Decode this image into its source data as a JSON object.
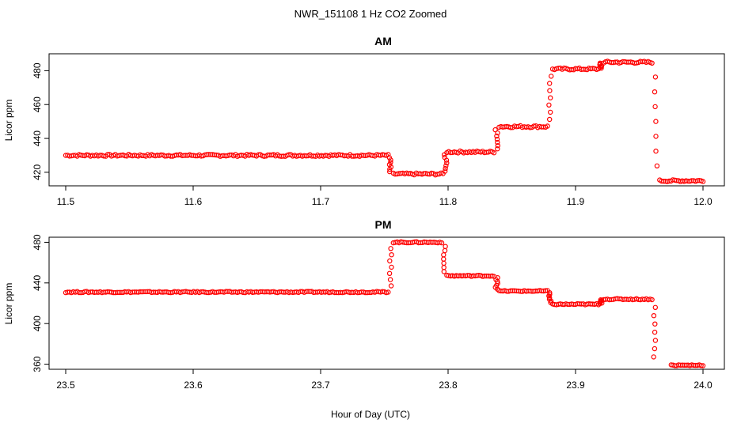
{
  "chart_data": [
    {
      "type": "scatter",
      "title": "AM",
      "ylabel": "Licor ppm",
      "xlim": [
        11.5,
        12.0
      ],
      "ylim": [
        412,
        490
      ],
      "x_ticks": [
        11.5,
        11.6,
        11.7,
        11.8,
        11.9,
        12.0
      ],
      "x_tick_labels": [
        "11.5",
        "11.6",
        "11.7",
        "11.8",
        "11.9",
        "12.0"
      ],
      "y_ticks": [
        420,
        440,
        460,
        480
      ],
      "y_tick_labels": [
        "420",
        "440",
        "460",
        "480"
      ],
      "marker_color": "#ff0000",
      "segments": [
        {
          "x_start": 11.5,
          "x_end": 11.753,
          "y": 430
        },
        {
          "x_start": 11.757,
          "x_end": 11.796,
          "y": 419
        },
        {
          "x_start": 11.799,
          "x_end": 11.836,
          "y": 432
        },
        {
          "x_start": 11.84,
          "x_end": 11.878,
          "y": 447
        },
        {
          "x_start": 11.882,
          "x_end": 11.918,
          "y": 481
        },
        {
          "x_start": 11.922,
          "x_end": 11.96,
          "y": 485
        },
        {
          "x_start": 11.966,
          "x_end": 12.0,
          "y": 415
        }
      ],
      "transitions": [
        {
          "x": 11.755,
          "y_from": 430,
          "y_to": 419
        },
        {
          "x": 11.798,
          "y_from": 419,
          "y_to": 432
        },
        {
          "x": 11.838,
          "y_from": 432,
          "y_to": 447
        },
        {
          "x": 11.88,
          "y_from": 447,
          "y_to": 481
        },
        {
          "x": 11.92,
          "y_from": 481,
          "y_to": 485
        },
        {
          "x": 11.963,
          "y_from": 485,
          "y_to": 415
        }
      ]
    },
    {
      "type": "scatter",
      "title": "PM",
      "ylabel": "Licor ppm",
      "xlim": [
        23.5,
        24.0
      ],
      "ylim": [
        355,
        485
      ],
      "x_ticks": [
        23.5,
        23.6,
        23.7,
        23.8,
        23.9,
        24.0
      ],
      "x_tick_labels": [
        "23.5",
        "23.6",
        "23.7",
        "23.8",
        "23.9",
        "24.0"
      ],
      "y_ticks": [
        360,
        400,
        440,
        480
      ],
      "y_tick_labels": [
        "360",
        "400",
        "440",
        "480"
      ],
      "marker_color": "#ff0000",
      "segments": [
        {
          "x_start": 23.5,
          "x_end": 23.753,
          "y": 431
        },
        {
          "x_start": 23.757,
          "x_end": 23.795,
          "y": 480
        },
        {
          "x_start": 23.799,
          "x_end": 23.836,
          "y": 447
        },
        {
          "x_start": 23.84,
          "x_end": 23.878,
          "y": 432
        },
        {
          "x_start": 23.882,
          "x_end": 23.918,
          "y": 419
        },
        {
          "x_start": 23.922,
          "x_end": 23.96,
          "y": 424
        },
        {
          "x_start": 23.975,
          "x_end": 24.0,
          "y": 359
        }
      ],
      "transitions": [
        {
          "x": 23.755,
          "y_from": 431,
          "y_to": 480
        },
        {
          "x": 23.797,
          "y_from": 480,
          "y_to": 447
        },
        {
          "x": 23.838,
          "y_from": 447,
          "y_to": 432
        },
        {
          "x": 23.88,
          "y_from": 432,
          "y_to": 419
        },
        {
          "x": 23.92,
          "y_from": 419,
          "y_to": 424
        },
        {
          "x": 23.962,
          "y_from": 424,
          "y_to": 359
        }
      ]
    }
  ],
  "page": {
    "main_title": "NWR_151108  1 Hz CO2 Zoomed",
    "xlabel": "Hour of Day (UTC)"
  }
}
